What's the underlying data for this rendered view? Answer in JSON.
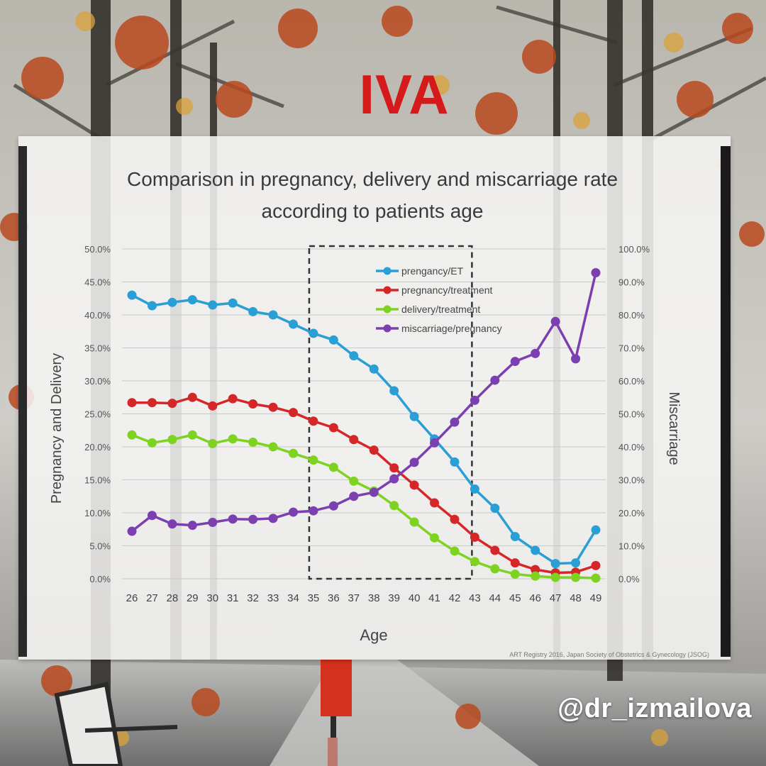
{
  "page": {
    "brand_title": "IVA",
    "handle": "@dr_izmailova",
    "brand_color": "#d41a1a"
  },
  "chart_data": {
    "type": "line",
    "title": "Comparison in pregnancy, delivery and miscarriage rate",
    "subtitle": "according to patients age",
    "xlabel": "Age",
    "ylabel_left": "Pregnancy and Delivery",
    "ylabel_right": "Miscarriage",
    "source": "ART Registry 2016, Japan Society of Obstetrics & Gynecology (JSOG)",
    "x": [
      26,
      27,
      28,
      29,
      30,
      31,
      32,
      33,
      34,
      35,
      36,
      37,
      38,
      39,
      40,
      41,
      42,
      43,
      44,
      45,
      46,
      47,
      48,
      49
    ],
    "ylim_left": [
      0,
      50
    ],
    "ylim_right": [
      0,
      100
    ],
    "y_ticks_left": [
      "0.0%",
      "5.0%",
      "10.0%",
      "15.0%",
      "20.0%",
      "25.0%",
      "30.0%",
      "35.0%",
      "40.0%",
      "45.0%",
      "50.0%"
    ],
    "y_ticks_right": [
      "0.0%",
      "10.0%",
      "20.0%",
      "30.0%",
      "40.0%",
      "50.0%",
      "60.0%",
      "70.0%",
      "80.0%",
      "90.0%",
      "100.0%"
    ],
    "grid": true,
    "legend_position": "top-center",
    "highlight_range": [
      35,
      43
    ],
    "series": [
      {
        "name": "prengancy/ET",
        "axis": "left",
        "color": "#2a9fd6",
        "values": [
          43.0,
          41.4,
          41.9,
          42.3,
          41.5,
          41.8,
          40.5,
          40.0,
          38.6,
          37.2,
          36.2,
          33.8,
          31.8,
          28.5,
          24.6,
          21.2,
          17.7,
          13.6,
          10.7,
          6.4,
          4.3,
          2.3,
          2.4,
          7.4
        ]
      },
      {
        "name": "pregnancy/treatment",
        "axis": "left",
        "color": "#d62728",
        "values": [
          26.7,
          26.7,
          26.6,
          27.5,
          26.2,
          27.3,
          26.5,
          26.0,
          25.2,
          23.9,
          22.9,
          21.1,
          19.5,
          16.8,
          14.2,
          11.5,
          9.0,
          6.3,
          4.3,
          2.4,
          1.4,
          0.9,
          1.0,
          2.0
        ]
      },
      {
        "name": "delivery/treatment",
        "axis": "left",
        "color": "#7ed321",
        "values": [
          21.8,
          20.6,
          21.1,
          21.8,
          20.5,
          21.2,
          20.7,
          20.0,
          19.0,
          18.0,
          16.9,
          14.8,
          13.3,
          11.1,
          8.6,
          6.2,
          4.2,
          2.6,
          1.5,
          0.7,
          0.4,
          0.2,
          0.2,
          0.1
        ]
      },
      {
        "name": "miscarriage/pregnancy",
        "axis": "right",
        "color": "#7b3fb0",
        "values": [
          14.4,
          19.2,
          16.6,
          16.2,
          17.1,
          18.1,
          18.0,
          18.3,
          20.2,
          20.6,
          22.1,
          25.0,
          26.2,
          30.3,
          35.3,
          41.2,
          47.5,
          54.1,
          60.2,
          65.9,
          68.3,
          78.0,
          66.7,
          92.8
        ]
      }
    ]
  }
}
